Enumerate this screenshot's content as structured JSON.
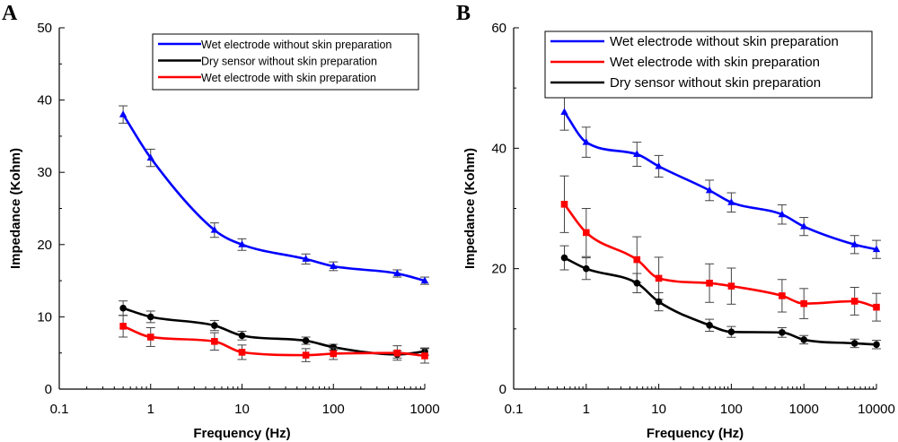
{
  "chart_data": [
    {
      "panel": "A",
      "type": "line",
      "xscale": "log",
      "xlim": [
        0.1,
        1000
      ],
      "ylim": [
        0,
        50
      ],
      "xticks": [
        0.1,
        1,
        10,
        100,
        1000
      ],
      "xtick_labels": [
        "0.1",
        "1",
        "10",
        "100",
        "1000"
      ],
      "yticks": [
        0,
        10,
        20,
        30,
        40,
        50
      ],
      "ytick_labels": [
        "0",
        "10",
        "20",
        "30",
        "40",
        "50"
      ],
      "xlabel": "Frequency (Hz)",
      "ylabel": "Impedance (Kohm)",
      "legend_position": "top-right",
      "x": [
        0.5,
        1,
        5,
        10,
        50,
        100,
        500,
        1000
      ],
      "series": [
        {
          "name": "Wet electrode without skin preparation",
          "color": "#0000ff",
          "marker": "triangle",
          "values": [
            38,
            32,
            22,
            20,
            18,
            17,
            16,
            15
          ],
          "errors": [
            1.2,
            1.2,
            1.0,
            0.8,
            0.7,
            0.6,
            0.5,
            0.5
          ]
        },
        {
          "name": "Dry sensor without skin preparation",
          "color": "#000000",
          "marker": "circle",
          "values": [
            11.2,
            10,
            8.8,
            7.4,
            6.7,
            5.8,
            4.8,
            5.2
          ],
          "errors": [
            1.0,
            0.8,
            0.7,
            0.6,
            0.5,
            0.4,
            0.5,
            0.5
          ]
        },
        {
          "name": "Wet electrode with skin preparation",
          "color": "#ff0000",
          "marker": "square",
          "values": [
            8.7,
            7.2,
            6.6,
            5.1,
            4.7,
            4.9,
            5.0,
            4.6
          ],
          "errors": [
            1.5,
            1.3,
            1.2,
            1.0,
            0.9,
            0.8,
            1.0,
            1.0
          ]
        }
      ]
    },
    {
      "panel": "B",
      "type": "line",
      "xscale": "log",
      "xlim": [
        0.1,
        10000
      ],
      "ylim": [
        0,
        60
      ],
      "xticks": [
        0.1,
        1,
        10,
        100,
        1000,
        10000
      ],
      "xtick_labels": [
        "0.1",
        "1",
        "10",
        "100",
        "1000",
        "10000"
      ],
      "yticks": [
        0,
        20,
        40,
        60
      ],
      "ytick_labels": [
        "0",
        "20",
        "40",
        "60"
      ],
      "xlabel": "Frequency (Hz)",
      "ylabel": "Impedance (Kohm)",
      "legend_position": "top-right",
      "x": [
        0.5,
        1,
        5,
        10,
        50,
        100,
        500,
        1000,
        5000,
        10000
      ],
      "series": [
        {
          "name": "Wet electrode without skin preparation",
          "color": "#0000ff",
          "marker": "triangle",
          "values": [
            46,
            41,
            39,
            37,
            33,
            31,
            29,
            27,
            24,
            23.2
          ],
          "errors": [
            3.0,
            2.5,
            2.0,
            1.8,
            1.7,
            1.6,
            1.6,
            1.5,
            1.5,
            1.5
          ]
        },
        {
          "name": "Wet electrode with skin preparation",
          "color": "#ff0000",
          "marker": "square",
          "values": [
            30.7,
            26,
            21.5,
            18.4,
            17.6,
            17.1,
            15.5,
            14.2,
            14.6,
            13.6
          ],
          "errors": [
            4.7,
            4.0,
            3.8,
            3.5,
            3.2,
            3.0,
            2.7,
            2.5,
            2.3,
            2.3
          ]
        },
        {
          "name": "Dry sensor without skin preparation",
          "color": "#000000",
          "marker": "circle",
          "values": [
            21.8,
            20,
            17.6,
            14.5,
            10.6,
            9.5,
            9.4,
            8.2,
            7.6,
            7.4
          ],
          "errors": [
            2.0,
            1.8,
            1.6,
            1.5,
            1.0,
            0.9,
            0.8,
            0.7,
            0.7,
            0.7
          ]
        }
      ]
    }
  ]
}
